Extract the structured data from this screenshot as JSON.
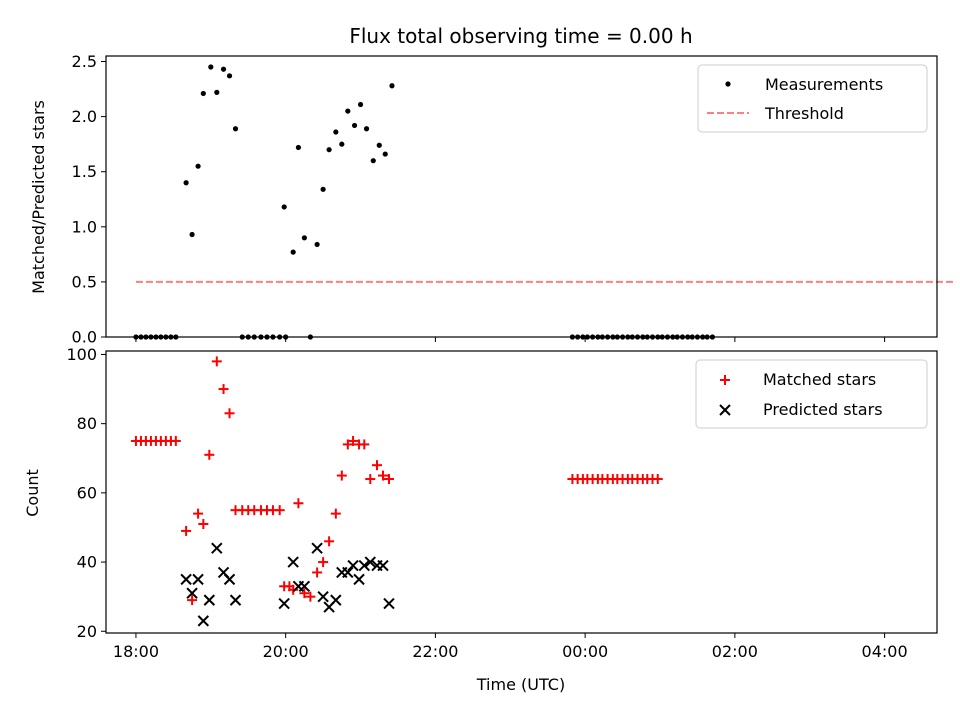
{
  "chart_data": [
    {
      "type": "scatter",
      "title": "Flux total observing time = 0.00 h",
      "xlabel": "",
      "ylabel": "Matched/Predicted stars",
      "xlim": [
        17.6,
        28.7
      ],
      "ylim": [
        0,
        2.55
      ],
      "xticks": [
        18,
        20,
        22,
        24,
        26,
        28
      ],
      "yticks": [
        0.0,
        0.5,
        1.0,
        1.5,
        2.0,
        2.5
      ],
      "ytick_labels": [
        "0.0",
        "0.5",
        "1.0",
        "1.5",
        "2.0",
        "2.5"
      ],
      "legend_position": "top-right",
      "series": [
        {
          "name": "Measurements",
          "color": "#000000",
          "marker": "dot",
          "points": [
            [
              18.0,
              0
            ],
            [
              18.067,
              0
            ],
            [
              18.133,
              0
            ],
            [
              18.2,
              0
            ],
            [
              18.267,
              0
            ],
            [
              18.333,
              0
            ],
            [
              18.4,
              0
            ],
            [
              18.467,
              0
            ],
            [
              18.533,
              0
            ],
            [
              18.67,
              1.4
            ],
            [
              18.75,
              0.93
            ],
            [
              18.83,
              1.55
            ],
            [
              18.9,
              2.21
            ],
            [
              19.0,
              2.45
            ],
            [
              19.08,
              2.22
            ],
            [
              19.17,
              2.43
            ],
            [
              19.25,
              2.37
            ],
            [
              19.33,
              1.89
            ],
            [
              19.42,
              0
            ],
            [
              19.5,
              0
            ],
            [
              19.58,
              0
            ],
            [
              19.67,
              0
            ],
            [
              19.75,
              0
            ],
            [
              19.83,
              0
            ],
            [
              19.92,
              0
            ],
            [
              19.98,
              1.18
            ],
            [
              20.0,
              0
            ],
            [
              20.1,
              0.77
            ],
            [
              20.17,
              1.72
            ],
            [
              20.25,
              0.9
            ],
            [
              20.33,
              0
            ],
            [
              20.42,
              0.84
            ],
            [
              20.5,
              1.34
            ],
            [
              20.58,
              1.7
            ],
            [
              20.67,
              1.86
            ],
            [
              20.75,
              1.75
            ],
            [
              20.83,
              2.05
            ],
            [
              20.92,
              1.92
            ],
            [
              21.0,
              2.11
            ],
            [
              21.08,
              1.89
            ],
            [
              21.17,
              1.6
            ],
            [
              21.25,
              1.74
            ],
            [
              21.33,
              1.66
            ],
            [
              21.42,
              2.28
            ],
            [
              23.83,
              0
            ],
            [
              23.9,
              0
            ],
            [
              23.97,
              0
            ],
            [
              24.03,
              0
            ],
            [
              24.1,
              0
            ],
            [
              24.17,
              0
            ],
            [
              24.23,
              0
            ],
            [
              24.3,
              0
            ],
            [
              24.37,
              0
            ],
            [
              24.43,
              0
            ],
            [
              24.5,
              0
            ],
            [
              24.57,
              0
            ],
            [
              24.63,
              0
            ],
            [
              24.7,
              0
            ],
            [
              24.77,
              0
            ],
            [
              24.83,
              0
            ],
            [
              24.9,
              0
            ],
            [
              24.97,
              0
            ],
            [
              25.03,
              0
            ],
            [
              25.1,
              0
            ],
            [
              25.17,
              0
            ],
            [
              25.23,
              0
            ],
            [
              25.3,
              0
            ],
            [
              25.37,
              0
            ],
            [
              25.43,
              0
            ],
            [
              25.5,
              0
            ],
            [
              25.57,
              0
            ],
            [
              25.63,
              0
            ],
            [
              25.7,
              0
            ]
          ]
        },
        {
          "name": "Threshold",
          "color": "#ff7f7f",
          "style": "dashed",
          "line": [
            [
              18.0,
              0.5
            ],
            [
              28.95,
              0.5
            ]
          ]
        }
      ]
    },
    {
      "type": "scatter",
      "title": "",
      "xlabel": "Time (UTC)",
      "ylabel": "Count",
      "xlim": [
        17.6,
        28.7
      ],
      "ylim": [
        19.5,
        101
      ],
      "xticks": [
        18,
        20,
        22,
        24,
        26,
        28
      ],
      "xtick_labels": [
        "18:00",
        "20:00",
        "22:00",
        "00:00",
        "02:00",
        "04:00"
      ],
      "yticks": [
        20,
        40,
        60,
        80,
        100
      ],
      "ytick_labels": [
        "20",
        "40",
        "60",
        "80",
        "100"
      ],
      "legend_position": "top-right",
      "series": [
        {
          "name": "Matched stars",
          "color": "#ff0000",
          "marker": "plus",
          "points": [
            [
              18.0,
              75
            ],
            [
              18.067,
              75
            ],
            [
              18.133,
              75
            ],
            [
              18.2,
              75
            ],
            [
              18.267,
              75
            ],
            [
              18.333,
              75
            ],
            [
              18.4,
              75
            ],
            [
              18.467,
              75
            ],
            [
              18.533,
              75
            ],
            [
              18.67,
              49
            ],
            [
              18.75,
              29
            ],
            [
              18.83,
              54
            ],
            [
              18.9,
              51
            ],
            [
              18.98,
              71
            ],
            [
              19.08,
              98
            ],
            [
              19.17,
              90
            ],
            [
              19.25,
              83
            ],
            [
              19.33,
              55
            ],
            [
              19.42,
              55
            ],
            [
              19.5,
              55
            ],
            [
              19.58,
              55
            ],
            [
              19.67,
              55
            ],
            [
              19.75,
              55
            ],
            [
              19.83,
              55
            ],
            [
              19.92,
              55
            ],
            [
              19.98,
              33
            ],
            [
              20.05,
              33
            ],
            [
              20.1,
              32
            ],
            [
              20.17,
              57
            ],
            [
              20.25,
              31
            ],
            [
              20.33,
              30
            ],
            [
              20.42,
              37
            ],
            [
              20.5,
              40
            ],
            [
              20.58,
              46
            ],
            [
              20.67,
              54
            ],
            [
              20.75,
              65
            ],
            [
              20.83,
              74
            ],
            [
              20.9,
              75
            ],
            [
              20.98,
              74
            ],
            [
              21.05,
              74
            ],
            [
              21.13,
              64
            ],
            [
              21.22,
              68
            ],
            [
              21.3,
              65
            ],
            [
              21.38,
              64
            ],
            [
              23.83,
              64
            ],
            [
              23.9,
              64
            ],
            [
              23.97,
              64
            ],
            [
              24.03,
              64
            ],
            [
              24.1,
              64
            ],
            [
              24.17,
              64
            ],
            [
              24.23,
              64
            ],
            [
              24.3,
              64
            ],
            [
              24.37,
              64
            ],
            [
              24.43,
              64
            ],
            [
              24.5,
              64
            ],
            [
              24.57,
              64
            ],
            [
              24.63,
              64
            ],
            [
              24.7,
              64
            ],
            [
              24.77,
              64
            ],
            [
              24.83,
              64
            ],
            [
              24.9,
              64
            ],
            [
              24.97,
              64
            ]
          ]
        },
        {
          "name": "Predicted stars",
          "color": "#000000",
          "marker": "x",
          "points": [
            [
              18.67,
              35
            ],
            [
              18.75,
              31
            ],
            [
              18.83,
              35
            ],
            [
              18.9,
              23
            ],
            [
              18.98,
              29
            ],
            [
              19.08,
              44
            ],
            [
              19.17,
              37
            ],
            [
              19.25,
              35
            ],
            [
              19.33,
              29
            ],
            [
              19.98,
              28
            ],
            [
              20.1,
              40
            ],
            [
              20.17,
              33
            ],
            [
              20.25,
              33
            ],
            [
              20.42,
              44
            ],
            [
              20.5,
              30
            ],
            [
              20.58,
              27
            ],
            [
              20.67,
              29
            ],
            [
              20.75,
              37
            ],
            [
              20.83,
              37
            ],
            [
              20.9,
              39
            ],
            [
              20.98,
              35
            ],
            [
              21.05,
              39
            ],
            [
              21.13,
              40
            ],
            [
              21.22,
              39
            ],
            [
              21.3,
              39
            ],
            [
              21.38,
              28
            ]
          ]
        }
      ]
    }
  ]
}
